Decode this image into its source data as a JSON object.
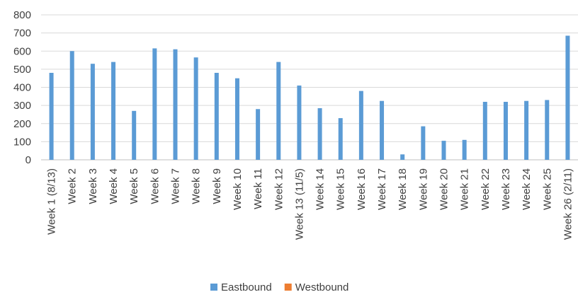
{
  "chart_data": {
    "type": "bar",
    "title": "",
    "xlabel": "",
    "ylabel": "",
    "ylim": [
      0,
      800
    ],
    "yticks": [
      0,
      100,
      200,
      300,
      400,
      500,
      600,
      700,
      800
    ],
    "grid": true,
    "legend_position": "bottom",
    "categories": [
      "Week 1 (8/13)",
      "Week 2",
      "Week 3",
      "Week 4",
      "Week 5",
      "Week 6",
      "Week 7",
      "Week 8",
      "Week 9",
      "Week 10",
      "Week 11",
      "Week 12",
      "Week 13 (11/5)",
      "Week 14",
      "Week 15",
      "Week 16",
      "Week 17",
      "Week 18",
      "Week 19",
      "Week 20",
      "Week 21",
      "Week 22",
      "Week 23",
      "Week 24",
      "Week 25",
      "Week 26 (2/11)"
    ],
    "series": [
      {
        "name": "Eastbound",
        "color": "#5B9BD5",
        "values": [
          480,
          600,
          530,
          540,
          270,
          615,
          610,
          565,
          480,
          450,
          280,
          540,
          410,
          285,
          230,
          380,
          325,
          30,
          185,
          105,
          110,
          320,
          320,
          325,
          330,
          685
        ]
      },
      {
        "name": "Westbound",
        "color": "#ED7D31",
        "values": [
          0,
          0,
          0,
          0,
          0,
          0,
          0,
          0,
          0,
          0,
          0,
          0,
          0,
          0,
          0,
          0,
          0,
          0,
          0,
          0,
          0,
          0,
          0,
          0,
          0,
          0
        ]
      }
    ]
  }
}
